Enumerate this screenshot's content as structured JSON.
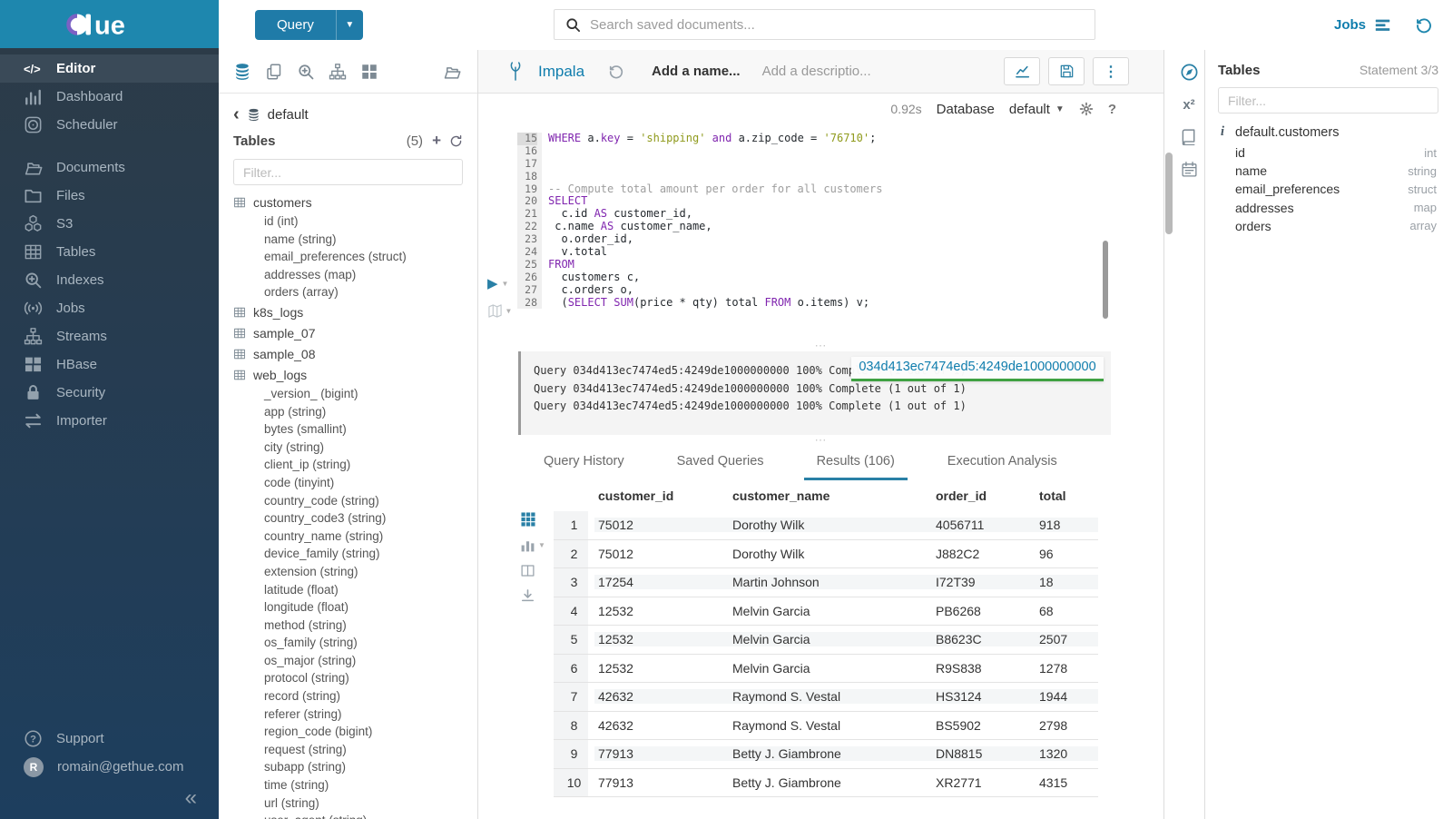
{
  "colors": {
    "brand_teal": "#1e87ae",
    "hue_blue": "#2980a6",
    "link_blue": "#0f7dad",
    "keyword_purple": "#8026af",
    "string_olive": "#8f9a1c",
    "tooltip_underline_green": "#3fa142"
  },
  "sidebar": {
    "logo_text": "HUE",
    "items": [
      {
        "label": "Editor",
        "icon": "code",
        "active": true
      },
      {
        "label": "Dashboard",
        "icon": "dashboard"
      },
      {
        "label": "Scheduler",
        "icon": "scheduler"
      },
      {
        "label": "Documents",
        "icon": "documents",
        "gap_before": true
      },
      {
        "label": "Files",
        "icon": "folder"
      },
      {
        "label": "S3",
        "icon": "cubes"
      },
      {
        "label": "Tables",
        "icon": "table-grid"
      },
      {
        "label": "Indexes",
        "icon": "search-plus"
      },
      {
        "label": "Jobs",
        "icon": "broadcast"
      },
      {
        "label": "Streams",
        "icon": "sitemap"
      },
      {
        "label": "HBase",
        "icon": "blocks"
      },
      {
        "label": "Security",
        "icon": "lock"
      },
      {
        "label": "Importer",
        "icon": "swap"
      }
    ],
    "support_label": "Support",
    "user_email": "romain@gethue.com",
    "user_initial": "R"
  },
  "topbar": {
    "query_button_label": "Query",
    "search_placeholder": "Search saved documents...",
    "jobs_label": "Jobs"
  },
  "left_assist": {
    "toolbar_icons": [
      "database",
      "copy",
      "search-plus",
      "sitemap",
      "grid"
    ],
    "active_icon": "database",
    "database_name": "default",
    "tables_title": "Tables",
    "tables_count": "(5)",
    "filter_placeholder": "Filter...",
    "tables": [
      {
        "name": "customers",
        "columns": [
          "id (int)",
          "name (string)",
          "email_preferences (struct)",
          "addresses (map)",
          "orders (array)"
        ]
      },
      {
        "name": "k8s_logs",
        "columns": []
      },
      {
        "name": "sample_07",
        "columns": []
      },
      {
        "name": "sample_08",
        "columns": []
      },
      {
        "name": "web_logs",
        "columns": [
          "_version_ (bigint)",
          "app (string)",
          "bytes (smallint)",
          "city (string)",
          "client_ip (string)",
          "code (tinyint)",
          "country_code (string)",
          "country_code3 (string)",
          "country_name (string)",
          "device_family (string)",
          "extension (string)",
          "latitude (float)",
          "longitude (float)",
          "method (string)",
          "os_family (string)",
          "os_major (string)",
          "protocol (string)",
          "record (string)",
          "referer (string)",
          "region_code (bigint)",
          "request (string)",
          "subapp (string)",
          "time (string)",
          "url (string)",
          "user_agent (string)"
        ]
      }
    ]
  },
  "editor": {
    "engine": "Impala",
    "name_placeholder": "Add a name...",
    "description_placeholder": "Add a descriptio...",
    "duration": "0.92s",
    "database_label": "Database",
    "database_value": "default",
    "code_lines": [
      {
        "n": 15,
        "toks": [
          [
            "kw",
            "WHERE"
          ],
          [
            "p",
            " a."
          ],
          [
            "kw",
            "key"
          ],
          [
            "p",
            " = "
          ],
          [
            "str",
            "'shipping'"
          ],
          [
            "p",
            " "
          ],
          [
            "kw",
            "and"
          ],
          [
            "p",
            " a.zip_code = "
          ],
          [
            "str",
            "'76710'"
          ],
          [
            "p",
            ";"
          ]
        ]
      },
      {
        "n": 16,
        "toks": []
      },
      {
        "n": 17,
        "toks": []
      },
      {
        "n": 18,
        "toks": []
      },
      {
        "n": 19,
        "toks": [
          [
            "com",
            "-- Compute total amount per order for all customers"
          ]
        ]
      },
      {
        "n": 20,
        "toks": [
          [
            "kw",
            "SELECT"
          ]
        ]
      },
      {
        "n": 21,
        "toks": [
          [
            "p",
            "  c.id "
          ],
          [
            "kw",
            "AS"
          ],
          [
            "p",
            " customer_id,"
          ]
        ]
      },
      {
        "n": 22,
        "toks": [
          [
            "p",
            " c.name "
          ],
          [
            "kw",
            "AS"
          ],
          [
            "p",
            " customer_name,"
          ]
        ]
      },
      {
        "n": 23,
        "toks": [
          [
            "p",
            "  o.order_id,"
          ]
        ]
      },
      {
        "n": 24,
        "toks": [
          [
            "p",
            "  v.total"
          ]
        ]
      },
      {
        "n": 25,
        "toks": [
          [
            "kw",
            "FROM"
          ]
        ]
      },
      {
        "n": 26,
        "toks": [
          [
            "p",
            "  customers c,"
          ]
        ]
      },
      {
        "n": 27,
        "toks": [
          [
            "p",
            "  c.orders o,"
          ]
        ]
      },
      {
        "n": 28,
        "toks": [
          [
            "p",
            "  ("
          ],
          [
            "kw",
            "SELECT"
          ],
          [
            "p",
            " "
          ],
          [
            "kw",
            "SUM"
          ],
          [
            "p",
            "(price * qty) total "
          ],
          [
            "kw",
            "FROM"
          ],
          [
            "p",
            " o.items) v;"
          ]
        ]
      }
    ],
    "log_lines": [
      "Query 034d413ec7474ed5:4249de1000000000 100% Complete (1 out of 1)",
      "Query 034d413ec7474ed5:4249de1000000000 100% Complete (1 out of 1)",
      "Query 034d413ec7474ed5:4249de1000000000 100% Complete (1 out of 1)"
    ],
    "query_id_link": "034d413ec7474ed5:4249de1000000000",
    "tabs": [
      {
        "label": "Query History"
      },
      {
        "label": "Saved Queries"
      },
      {
        "label": "Results (106)",
        "active": true
      },
      {
        "label": "Execution Analysis"
      }
    ],
    "results": {
      "columns": [
        "customer_id",
        "customer_name",
        "order_id",
        "total"
      ],
      "rows": [
        [
          "1",
          "75012",
          "Dorothy Wilk",
          "4056711",
          "918"
        ],
        [
          "2",
          "75012",
          "Dorothy Wilk",
          "J882C2",
          "96"
        ],
        [
          "3",
          "17254",
          "Martin Johnson",
          "I72T39",
          "18"
        ],
        [
          "4",
          "12532",
          "Melvin Garcia",
          "PB6268",
          "68"
        ],
        [
          "5",
          "12532",
          "Melvin Garcia",
          "B8623C",
          "2507"
        ],
        [
          "6",
          "12532",
          "Melvin Garcia",
          "R9S838",
          "1278"
        ],
        [
          "7",
          "42632",
          "Raymond S. Vestal",
          "HS3124",
          "1944"
        ],
        [
          "8",
          "42632",
          "Raymond S. Vestal",
          "BS5902",
          "2798"
        ],
        [
          "9",
          "77913",
          "Betty J. Giambrone",
          "DN8815",
          "1320"
        ],
        [
          "10",
          "77913",
          "Betty J. Giambrone",
          "XR2771",
          "4315"
        ]
      ]
    }
  },
  "right_assist": {
    "title": "Tables",
    "statement": "Statement 3/3",
    "filter_placeholder": "Filter...",
    "table_name": "default.customers",
    "columns": [
      {
        "name": "id",
        "type": "int"
      },
      {
        "name": "name",
        "type": "string"
      },
      {
        "name": "email_preferences",
        "type": "struct"
      },
      {
        "name": "addresses",
        "type": "map"
      },
      {
        "name": "orders",
        "type": "array"
      }
    ]
  }
}
